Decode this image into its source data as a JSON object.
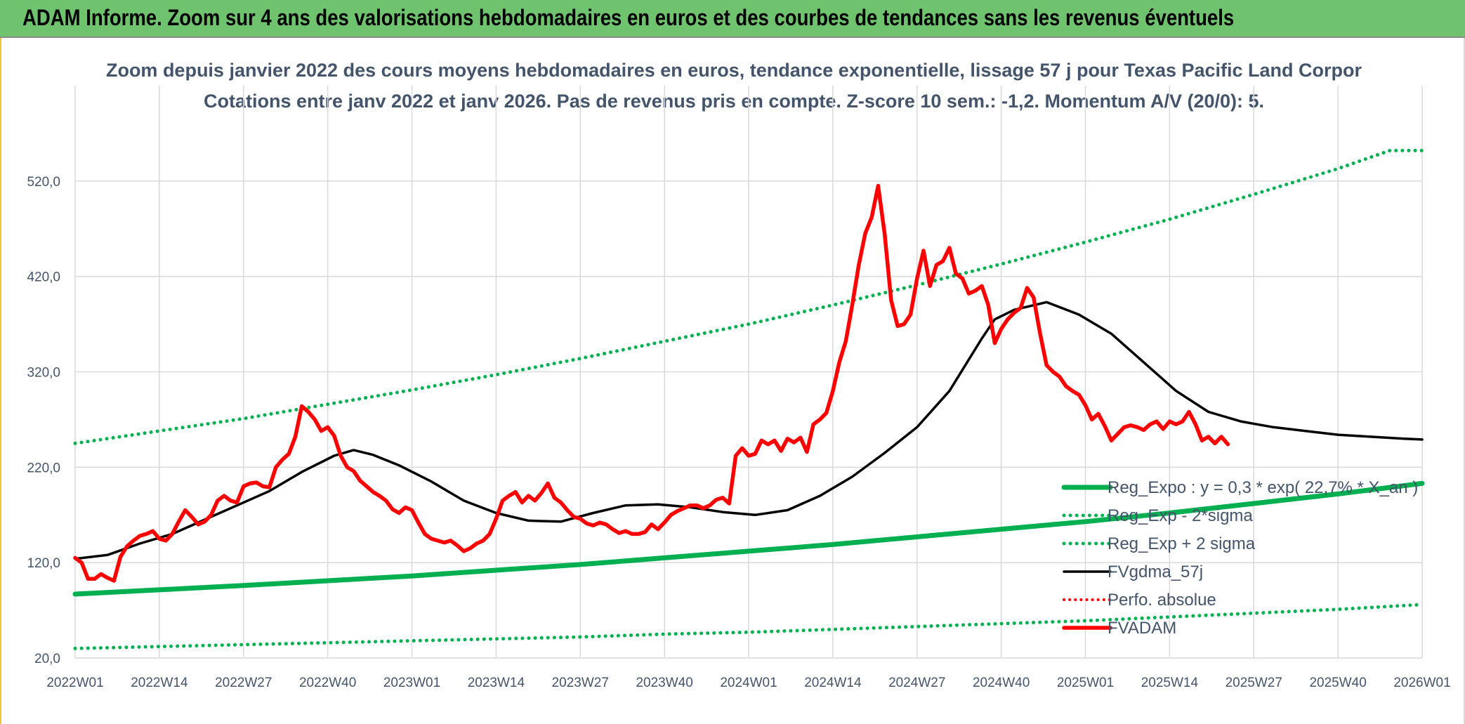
{
  "header": {
    "title": "ADAM Informe. Zoom sur 4 ans des valorisations hebdomadaires en euros et des courbes de tendances sans les revenus éventuels"
  },
  "colors": {
    "header_bg": "#6fc36f",
    "trend_green": "#00b050",
    "smooth_black": "#000000",
    "price_red": "#ff0000",
    "grid": "#d9d9d9",
    "text": "#44546a"
  },
  "chart_data": {
    "type": "line",
    "title": "Zoom depuis janvier 2022  des cours moyens hebdomadaires en euros, tendance exponentielle, lissage 57 j pour Texas Pacific Land Corpor",
    "subtitle": "Cotations entre janv 2022 et janv 2026. Pas de revenus pris en compte. Z-score 10 sem.: -1,2. Momentum A/V (20/0): 5.",
    "xlabel": "",
    "ylabel": "",
    "ylim": [
      20,
      620
    ],
    "y_ticks": [
      "520,0",
      "420,0",
      "320,0",
      "220,0",
      "120,0",
      "20,0"
    ],
    "y_tick_values": [
      520,
      420,
      320,
      220,
      120,
      20
    ],
    "x_tick_labels": [
      "2022W01",
      "2022W14",
      "2022W27",
      "2022W40",
      "2023W01",
      "2023W14",
      "2023W27",
      "2023W40",
      "2024W01",
      "2024W14",
      "2024W27",
      "2024W40",
      "2025W01",
      "2025W14",
      "2025W27",
      "2025W40",
      "2026W01"
    ],
    "x_range_weeks": [
      0,
      208
    ],
    "grid": true,
    "legend_position": "bottom-right",
    "series": [
      {
        "name": "Reg_Expo : y = 0,3 *  exp( 22,7% *  X_an )",
        "style": "solid-thick-green",
        "points": [
          [
            0,
            87
          ],
          [
            13,
            91.5
          ],
          [
            26,
            96
          ],
          [
            39,
            101
          ],
          [
            52,
            106
          ],
          [
            65,
            112
          ],
          [
            78,
            118
          ],
          [
            91,
            125
          ],
          [
            104,
            132
          ],
          [
            117,
            139
          ],
          [
            130,
            147
          ],
          [
            143,
            155
          ],
          [
            156,
            163
          ],
          [
            169,
            172
          ],
          [
            182,
            182
          ],
          [
            195,
            192
          ],
          [
            208,
            203
          ]
        ]
      },
      {
        "name": "Reg_Exp - 2*sigma",
        "style": "dotted-green",
        "points": [
          [
            0,
            30
          ],
          [
            13,
            32
          ],
          [
            26,
            34
          ],
          [
            39,
            36
          ],
          [
            52,
            38
          ],
          [
            65,
            40
          ],
          [
            78,
            42
          ],
          [
            91,
            45
          ],
          [
            104,
            47
          ],
          [
            117,
            50
          ],
          [
            130,
            53
          ],
          [
            143,
            56
          ],
          [
            156,
            59
          ],
          [
            169,
            63
          ],
          [
            182,
            67
          ],
          [
            195,
            71
          ],
          [
            208,
            76
          ]
        ]
      },
      {
        "name": "Reg_Exp + 2 sigma",
        "style": "dotted-green",
        "points": [
          [
            0,
            245
          ],
          [
            13,
            258
          ],
          [
            26,
            271
          ],
          [
            39,
            286
          ],
          [
            52,
            301
          ],
          [
            65,
            317
          ],
          [
            78,
            334
          ],
          [
            91,
            352
          ],
          [
            104,
            370
          ],
          [
            117,
            390
          ],
          [
            130,
            411
          ],
          [
            143,
            433
          ],
          [
            156,
            456
          ],
          [
            169,
            480
          ],
          [
            182,
            506
          ],
          [
            195,
            533
          ],
          [
            203,
            552
          ],
          [
            208,
            552
          ]
        ]
      },
      {
        "name": "FVgdma_57j",
        "style": "solid-black",
        "points": [
          [
            0,
            124
          ],
          [
            5,
            128
          ],
          [
            10,
            140
          ],
          [
            15,
            150
          ],
          [
            20,
            165
          ],
          [
            25,
            180
          ],
          [
            30,
            195
          ],
          [
            35,
            215
          ],
          [
            40,
            232
          ],
          [
            43,
            238
          ],
          [
            46,
            233
          ],
          [
            50,
            222
          ],
          [
            55,
            205
          ],
          [
            60,
            185
          ],
          [
            65,
            172
          ],
          [
            70,
            164
          ],
          [
            75,
            163
          ],
          [
            80,
            172
          ],
          [
            85,
            180
          ],
          [
            90,
            181
          ],
          [
            95,
            178
          ],
          [
            100,
            173
          ],
          [
            105,
            170
          ],
          [
            110,
            175
          ],
          [
            115,
            190
          ],
          [
            120,
            210
          ],
          [
            125,
            235
          ],
          [
            130,
            262
          ],
          [
            135,
            300
          ],
          [
            140,
            355
          ],
          [
            142,
            375
          ],
          [
            145,
            385
          ],
          [
            150,
            393
          ],
          [
            155,
            380
          ],
          [
            160,
            360
          ],
          [
            165,
            330
          ],
          [
            170,
            300
          ],
          [
            175,
            278
          ],
          [
            180,
            268
          ],
          [
            185,
            262
          ],
          [
            190,
            258
          ],
          [
            195,
            254
          ],
          [
            200,
            252
          ],
          [
            205,
            250
          ],
          [
            208,
            249
          ]
        ]
      },
      {
        "name": "Perfo. absolue",
        "style": "dotted-red",
        "points": []
      },
      {
        "name": "FVADAM",
        "style": "solid-thick-red",
        "points": [
          [
            0,
            125
          ],
          [
            1,
            120
          ],
          [
            2,
            103
          ],
          [
            3,
            103
          ],
          [
            4,
            108
          ],
          [
            5,
            104
          ],
          [
            6,
            101
          ],
          [
            7,
            126
          ],
          [
            8,
            137
          ],
          [
            9,
            143
          ],
          [
            10,
            148
          ],
          [
            11,
            150
          ],
          [
            12,
            153
          ],
          [
            13,
            145
          ],
          [
            14,
            143
          ],
          [
            15,
            150
          ],
          [
            16,
            163
          ],
          [
            17,
            175
          ],
          [
            18,
            168
          ],
          [
            19,
            160
          ],
          [
            20,
            163
          ],
          [
            21,
            170
          ],
          [
            22,
            185
          ],
          [
            23,
            190
          ],
          [
            24,
            185
          ],
          [
            25,
            183
          ],
          [
            26,
            200
          ],
          [
            27,
            203
          ],
          [
            28,
            204
          ],
          [
            29,
            200
          ],
          [
            30,
            199
          ],
          [
            31,
            220
          ],
          [
            32,
            228
          ],
          [
            33,
            234
          ],
          [
            34,
            252
          ],
          [
            35,
            284
          ],
          [
            36,
            278
          ],
          [
            37,
            270
          ],
          [
            38,
            258
          ],
          [
            39,
            262
          ],
          [
            40,
            253
          ],
          [
            41,
            232
          ],
          [
            42,
            220
          ],
          [
            43,
            216
          ],
          [
            44,
            206
          ],
          [
            45,
            200
          ],
          [
            46,
            194
          ],
          [
            47,
            190
          ],
          [
            48,
            185
          ],
          [
            49,
            176
          ],
          [
            50,
            172
          ],
          [
            51,
            178
          ],
          [
            52,
            175
          ],
          [
            53,
            162
          ],
          [
            54,
            150
          ],
          [
            55,
            145
          ],
          [
            56,
            143
          ],
          [
            57,
            141
          ],
          [
            58,
            143
          ],
          [
            59,
            138
          ],
          [
            60,
            132
          ],
          [
            61,
            135
          ],
          [
            62,
            140
          ],
          [
            63,
            143
          ],
          [
            64,
            150
          ],
          [
            65,
            166
          ],
          [
            66,
            185
          ],
          [
            67,
            190
          ],
          [
            68,
            194
          ],
          [
            69,
            183
          ],
          [
            70,
            190
          ],
          [
            71,
            185
          ],
          [
            72,
            193
          ],
          [
            73,
            203
          ],
          [
            74,
            188
          ],
          [
            75,
            183
          ],
          [
            76,
            175
          ],
          [
            77,
            168
          ],
          [
            78,
            166
          ],
          [
            79,
            161
          ],
          [
            80,
            159
          ],
          [
            81,
            162
          ],
          [
            82,
            160
          ],
          [
            83,
            155
          ],
          [
            84,
            151
          ],
          [
            85,
            153
          ],
          [
            86,
            150
          ],
          [
            87,
            150
          ],
          [
            88,
            152
          ],
          [
            89,
            160
          ],
          [
            90,
            155
          ],
          [
            91,
            162
          ],
          [
            92,
            170
          ],
          [
            93,
            174
          ],
          [
            94,
            177
          ],
          [
            95,
            180
          ],
          [
            96,
            180
          ],
          [
            97,
            177
          ],
          [
            98,
            180
          ],
          [
            99,
            186
          ],
          [
            100,
            188
          ],
          [
            101,
            182
          ],
          [
            102,
            232
          ],
          [
            103,
            240
          ],
          [
            104,
            232
          ],
          [
            105,
            234
          ],
          [
            106,
            248
          ],
          [
            107,
            244
          ],
          [
            108,
            248
          ],
          [
            109,
            237
          ],
          [
            110,
            250
          ],
          [
            111,
            246
          ],
          [
            112,
            251
          ],
          [
            113,
            236
          ],
          [
            114,
            265
          ],
          [
            115,
            270
          ],
          [
            116,
            277
          ],
          [
            117,
            300
          ],
          [
            118,
            330
          ],
          [
            119,
            352
          ],
          [
            120,
            390
          ],
          [
            121,
            432
          ],
          [
            122,
            465
          ],
          [
            123,
            482
          ],
          [
            124,
            515
          ],
          [
            125,
            465
          ],
          [
            126,
            395
          ],
          [
            127,
            368
          ],
          [
            128,
            370
          ],
          [
            129,
            380
          ],
          [
            130,
            418
          ],
          [
            131,
            447
          ],
          [
            132,
            410
          ],
          [
            133,
            432
          ],
          [
            134,
            436
          ],
          [
            135,
            450
          ],
          [
            136,
            423
          ],
          [
            137,
            418
          ],
          [
            138,
            402
          ],
          [
            139,
            405
          ],
          [
            140,
            410
          ],
          [
            141,
            390
          ],
          [
            142,
            350
          ],
          [
            143,
            365
          ],
          [
            144,
            375
          ],
          [
            145,
            382
          ],
          [
            146,
            387
          ],
          [
            147,
            408
          ],
          [
            148,
            398
          ],
          [
            149,
            360
          ],
          [
            150,
            327
          ],
          [
            151,
            320
          ],
          [
            152,
            315
          ],
          [
            153,
            305
          ],
          [
            154,
            300
          ],
          [
            155,
            296
          ],
          [
            156,
            285
          ],
          [
            157,
            270
          ],
          [
            158,
            276
          ],
          [
            159,
            263
          ],
          [
            160,
            248
          ],
          [
            161,
            255
          ],
          [
            162,
            262
          ],
          [
            163,
            264
          ],
          [
            164,
            262
          ],
          [
            165,
            259
          ],
          [
            166,
            265
          ],
          [
            167,
            268
          ],
          [
            168,
            260
          ],
          [
            169,
            268
          ],
          [
            170,
            265
          ],
          [
            171,
            268
          ],
          [
            172,
            278
          ],
          [
            173,
            265
          ],
          [
            174,
            248
          ],
          [
            175,
            252
          ],
          [
            176,
            245
          ],
          [
            177,
            252
          ],
          [
            178,
            244
          ]
        ]
      }
    ]
  }
}
